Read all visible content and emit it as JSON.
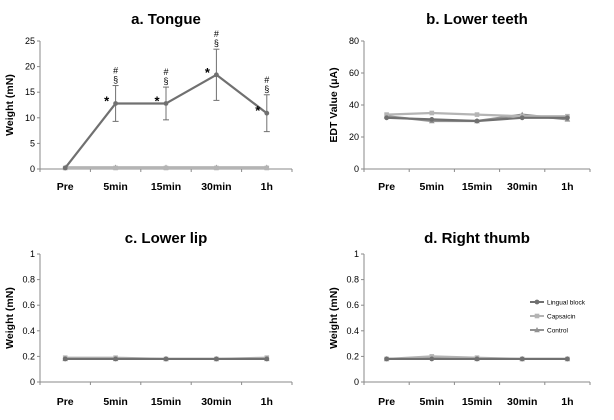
{
  "chart_data": [
    {
      "id": "tongue",
      "type": "line",
      "title": "a. Tongue",
      "ylabel": "Weight (mN)",
      "categories": [
        "Pre",
        "5min",
        "15min",
        "30min",
        "1h"
      ],
      "ylim": [
        0,
        25
      ],
      "yticks": [
        0,
        5,
        10,
        15,
        20,
        25
      ],
      "series": [
        {
          "name": "Lingual block",
          "color": "#707070",
          "values": [
            0.2,
            12.8,
            12.8,
            18.4,
            10.9
          ],
          "err": [
            0,
            3.5,
            3.2,
            5.0,
            3.6
          ]
        },
        {
          "name": "Capsaicin",
          "color": "#b4b4b4",
          "values": [
            0.2,
            0.2,
            0.2,
            0.2,
            0.2
          ]
        },
        {
          "name": "Control",
          "color": "#929292",
          "values": [
            0.3,
            0.3,
            0.3,
            0.3,
            0.3
          ]
        }
      ],
      "annotations": [
        {
          "index": 1,
          "value": 12.8,
          "err": 3.5,
          "star": "*",
          "marks": [
            "#",
            "§"
          ]
        },
        {
          "index": 2,
          "value": 12.8,
          "err": 3.2,
          "star": "*",
          "marks": [
            "#",
            "§"
          ]
        },
        {
          "index": 3,
          "value": 18.4,
          "err": 5.0,
          "star": "*",
          "marks": [
            "#",
            "§"
          ]
        },
        {
          "index": 4,
          "value": 10.9,
          "err": 3.6,
          "star": "*",
          "marks": [
            "#",
            "§"
          ]
        }
      ]
    },
    {
      "id": "lower-teeth",
      "type": "line",
      "title": "b. Lower teeth",
      "ylabel": "EDT Value (μA)",
      "categories": [
        "Pre",
        "5min",
        "15min",
        "30min",
        "1h"
      ],
      "ylim": [
        0,
        80
      ],
      "yticks": [
        0,
        20,
        40,
        60,
        80
      ],
      "series": [
        {
          "name": "Lingual block",
          "color": "#707070",
          "values": [
            32,
            31,
            30,
            32,
            32
          ]
        },
        {
          "name": "Capsaicin",
          "color": "#b4b4b4",
          "values": [
            34,
            35,
            34,
            33,
            33
          ]
        },
        {
          "name": "Control",
          "color": "#929292",
          "values": [
            33,
            30,
            30,
            34,
            31
          ]
        }
      ]
    },
    {
      "id": "lower-lip",
      "type": "line",
      "title": "c. Lower lip",
      "ylabel": "Weight (mN)",
      "categories": [
        "Pre",
        "5min",
        "15min",
        "30min",
        "1h"
      ],
      "ylim": [
        0,
        1
      ],
      "yticks": [
        0,
        0.2,
        0.4,
        0.6,
        0.8,
        1
      ],
      "series": [
        {
          "name": "Lingual block",
          "color": "#707070",
          "values": [
            0.18,
            0.18,
            0.18,
            0.18,
            0.18
          ]
        },
        {
          "name": "Capsaicin",
          "color": "#b4b4b4",
          "values": [
            0.19,
            0.19,
            0.18,
            0.18,
            0.19
          ]
        },
        {
          "name": "Control",
          "color": "#929292",
          "values": [
            0.18,
            0.18,
            0.18,
            0.18,
            0.18
          ]
        }
      ]
    },
    {
      "id": "right-thumb",
      "type": "line",
      "title": "d. Right thumb",
      "ylabel": "Weight (mN)",
      "categories": [
        "Pre",
        "5min",
        "15min",
        "30min",
        "1h"
      ],
      "ylim": [
        0,
        1
      ],
      "yticks": [
        0,
        0.2,
        0.4,
        0.6,
        0.8,
        1
      ],
      "legend": {
        "position": "right",
        "entries": [
          "Lingual block",
          "Capsaicin",
          "Control"
        ]
      },
      "series": [
        {
          "name": "Lingual block",
          "color": "#707070",
          "values": [
            0.18,
            0.18,
            0.18,
            0.18,
            0.18
          ]
        },
        {
          "name": "Capsaicin",
          "color": "#b4b4b4",
          "values": [
            0.18,
            0.2,
            0.19,
            0.18,
            0.18
          ]
        },
        {
          "name": "Control",
          "color": "#929292",
          "values": [
            0.18,
            0.19,
            0.18,
            0.18,
            0.18
          ]
        }
      ]
    }
  ]
}
